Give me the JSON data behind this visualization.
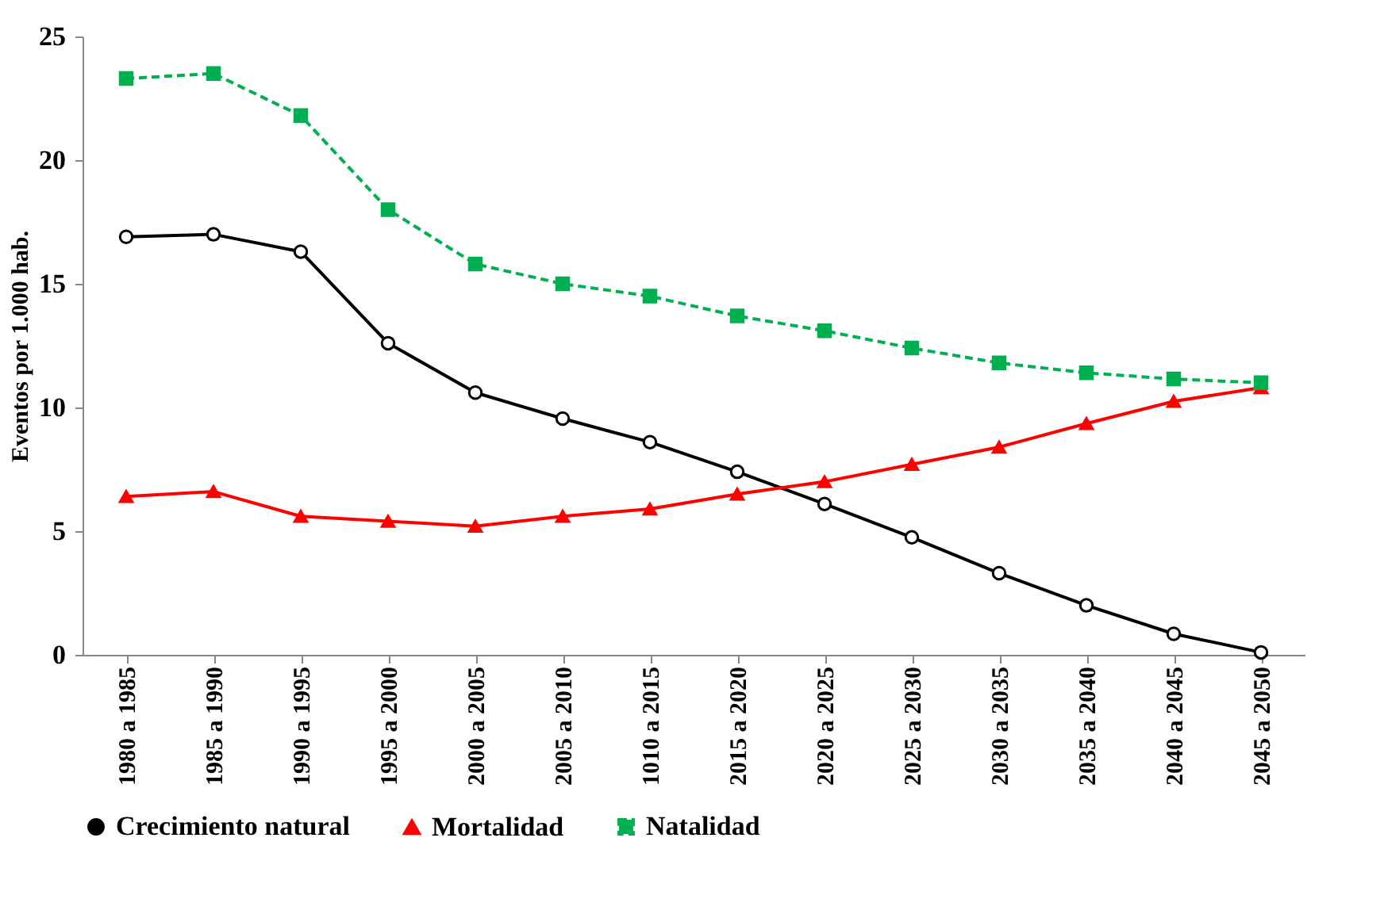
{
  "chart_data": {
    "type": "line",
    "ylabel": "Eventos por 1.000 hab.",
    "categories": [
      "1980 a 1985",
      "1985 a 1990",
      "1990 a 1995",
      "1995 a 2000",
      "2000 a 2005",
      "2005 a 2010",
      "1010 a 2015",
      "2015 a 2020",
      "2020 a 2025",
      "2025 a 2030",
      "2030 a 2035",
      "2035 a 2040",
      "2040 a 2045",
      "2045 a 2050"
    ],
    "series": [
      {
        "name": "Crecimiento natural",
        "color": "#000000",
        "marker": "circle",
        "line_style": "solid",
        "values": [
          16.9,
          17.0,
          16.3,
          12.6,
          10.6,
          9.55,
          8.6,
          7.4,
          6.1,
          4.75,
          3.3,
          2.0,
          0.85,
          0.1
        ]
      },
      {
        "name": "Mortalidad",
        "color": "#ff0000",
        "marker": "triangle",
        "line_style": "solid",
        "values": [
          6.4,
          6.6,
          5.6,
          5.4,
          5.2,
          5.6,
          5.9,
          6.5,
          7.0,
          7.7,
          8.4,
          9.35,
          10.25,
          10.8
        ]
      },
      {
        "name": "Natalidad",
        "color": "#00b050",
        "marker": "square",
        "line_style": "dashed",
        "values": [
          23.3,
          23.5,
          21.8,
          18.0,
          15.8,
          15.0,
          14.5,
          13.7,
          13.1,
          12.4,
          11.8,
          11.4,
          11.15,
          11.0
        ]
      }
    ],
    "ylim": [
      0,
      25
    ],
    "yticks": [
      0,
      5,
      10,
      15,
      20,
      25
    ],
    "grid": false,
    "legend": "bottom"
  }
}
